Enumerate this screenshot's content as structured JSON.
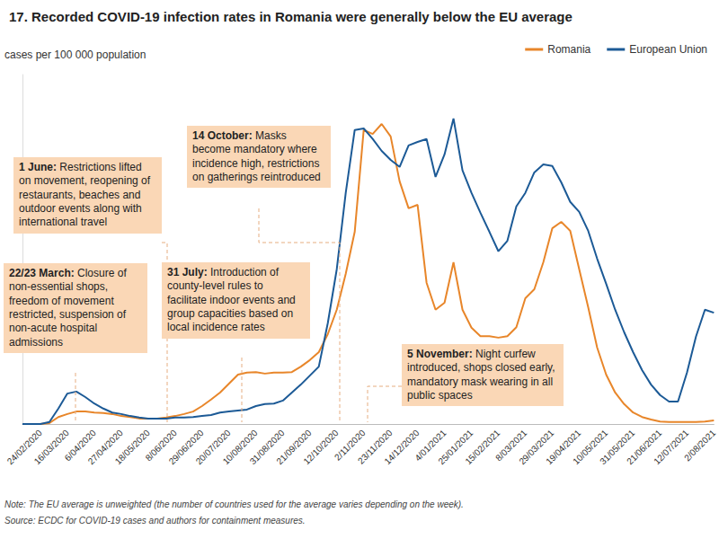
{
  "chart_data": {
    "type": "line",
    "title": "17. Recorded COVID-19 infection rates in Romania were generally below the EU average",
    "y_label": "cases per 100 000 population",
    "categories": [
      null,
      null,
      "24/02/2020",
      null,
      null,
      "16/03/2020",
      null,
      null,
      "6/04/2020",
      null,
      null,
      "27/04/2020",
      null,
      null,
      "18/05/2020",
      null,
      null,
      "8/06/2020",
      null,
      null,
      "29/06/2020",
      null,
      null,
      "20/07/2020",
      null,
      null,
      "10/08/2020",
      null,
      null,
      "31/08/2020",
      null,
      null,
      "21/09/2020",
      null,
      null,
      "12/10/2020",
      null,
      null,
      "2/11/2020",
      null,
      null,
      "23/11/2020",
      null,
      null,
      "14/12/2020",
      null,
      null,
      "4/01/2021",
      null,
      null,
      "25/01/2021",
      null,
      null,
      "15/02/2021",
      null,
      null,
      "8/03/2021",
      null,
      null,
      "29/03/2021",
      null,
      null,
      "19/04/2021",
      null,
      null,
      "10/05/2021",
      null,
      null,
      "31/05/2021",
      null,
      null,
      "21/06/2021",
      null,
      null,
      "12/07/2021",
      null,
      null,
      "2/08/2021"
    ],
    "series": [
      {
        "name": "Romania",
        "color": "#e8862a",
        "values": [
          0,
          0,
          0,
          2,
          14,
          20,
          25,
          25,
          23,
          22,
          20,
          16,
          14,
          11,
          11,
          11,
          13,
          16,
          20,
          25,
          36,
          49,
          63,
          81,
          99,
          103,
          104,
          101,
          103,
          103,
          104,
          115,
          128,
          144,
          180,
          229,
          301,
          385,
          589,
          581,
          601,
          576,
          486,
          432,
          439,
          283,
          229,
          243,
          324,
          229,
          193,
          176,
          176,
          173,
          176,
          194,
          252,
          270,
          324,
          392,
          405,
          387,
          310,
          234,
          153,
          99,
          63,
          40,
          23,
          14,
          9,
          5,
          4,
          4,
          4,
          4,
          5,
          7
        ]
      },
      {
        "name": "European Union",
        "color": "#1c5a96",
        "values": [
          0,
          0,
          0,
          4,
          31,
          61,
          65,
          54,
          41,
          31,
          23,
          20,
          16,
          13,
          11,
          11,
          11,
          13,
          13,
          14,
          16,
          18,
          23,
          25,
          27,
          29,
          36,
          40,
          41,
          47,
          63,
          79,
          97,
          115,
          202,
          310,
          463,
          589,
          592,
          571,
          547,
          529,
          515,
          558,
          565,
          571,
          495,
          540,
          612,
          508,
          463,
          423,
          385,
          346,
          367,
          436,
          463,
          504,
          520,
          517,
          484,
          445,
          425,
          387,
          331,
          281,
          229,
          184,
          144,
          108,
          79,
          58,
          45,
          45,
          103,
          175,
          229,
          223
        ]
      }
    ],
    "ylim": [
      0,
      700
    ],
    "grid": false,
    "legend": "top-right",
    "tick_labels": "x",
    "annotations": [
      {
        "label": "22/23 March:",
        "text": "Closure of non-essential shops, freedom of movement restricted, suspension of non-acute hospital admissions"
      },
      {
        "label": "1 June:",
        "text": "Restrictions lifted on movement, reopening of restaurants, beaches and outdoor events along with international travel"
      },
      {
        "label": "31 July:",
        "text": "Introduction of county-level rules to facilitate indoor events and group capacities based on local incidence rates"
      },
      {
        "label": "14 October:",
        "text": "Masks become mandatory where incidence high, restrictions on gatherings reintroduced"
      },
      {
        "label": "5 November:",
        "text": "Night curfew introduced, shops closed early, mandatory mask wearing in all public spaces"
      }
    ],
    "notes": [
      "Note: The EU average is unweighted (the number of countries used for the average varies depending on the week).",
      "Source: ECDC for COVID-19 cases and authors for containment measures."
    ]
  }
}
